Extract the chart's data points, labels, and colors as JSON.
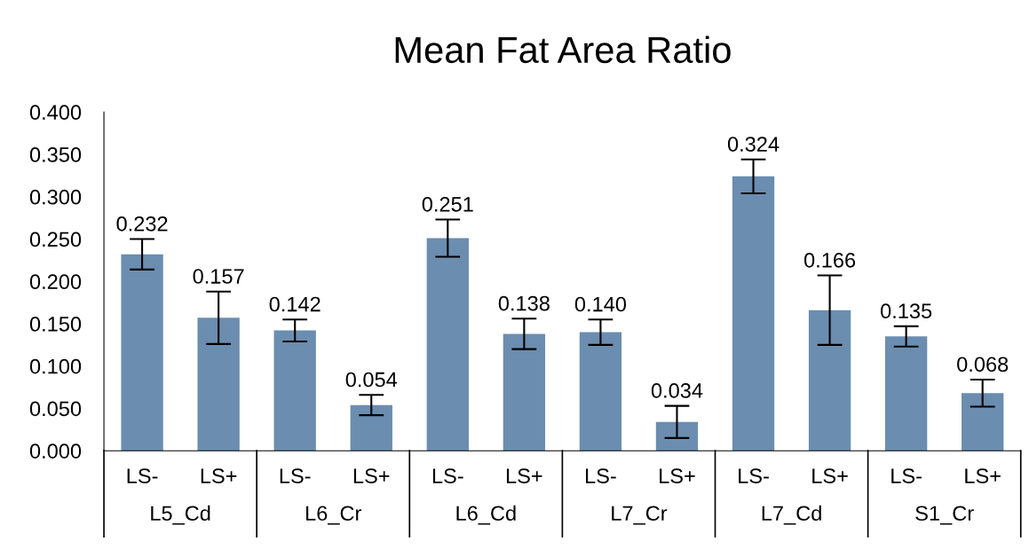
{
  "chart_data": {
    "type": "bar",
    "title": "Mean Fat Area Ratio",
    "categories": [
      "LS-",
      "LS+",
      "LS-",
      "LS+",
      "LS-",
      "LS+",
      "LS-",
      "LS+",
      "LS-",
      "LS+",
      "LS-",
      "LS+"
    ],
    "values": [
      0.232,
      0.157,
      0.142,
      0.054,
      0.251,
      0.138,
      0.14,
      0.034,
      0.324,
      0.166,
      0.135,
      0.068
    ],
    "value_labels": [
      "0.232",
      "0.157",
      "0.142",
      "0.054",
      "0.251",
      "0.138",
      "0.140",
      "0.034",
      "0.324",
      "0.166",
      "0.135",
      "0.068"
    ],
    "errors": [
      0.018,
      0.031,
      0.013,
      0.012,
      0.022,
      0.018,
      0.015,
      0.019,
      0.02,
      0.041,
      0.012,
      0.016
    ],
    "color": "#6b8db0",
    "annotations": [
      "L5_Cd",
      "L6_Cr",
      "L6_Cd",
      "L7_Cr",
      "L7_Cd",
      "S1_Cr"
    ],
    "ylim": [
      0,
      0.4
    ],
    "yticks": [
      {
        "value": 0,
        "label": "0.000"
      },
      {
        "value": 0.05,
        "label": "0.050"
      },
      {
        "value": 0.1,
        "label": "0.100"
      },
      {
        "value": 0.15,
        "label": "0.150"
      },
      {
        "value": 0.2,
        "label": "0.200"
      },
      {
        "value": 0.25,
        "label": "0.250"
      },
      {
        "value": 0.3,
        "label": "0.300"
      },
      {
        "value": 0.35,
        "label": "0.350"
      },
      {
        "value": 0.4,
        "label": "0.400"
      }
    ],
    "grid": false
  }
}
